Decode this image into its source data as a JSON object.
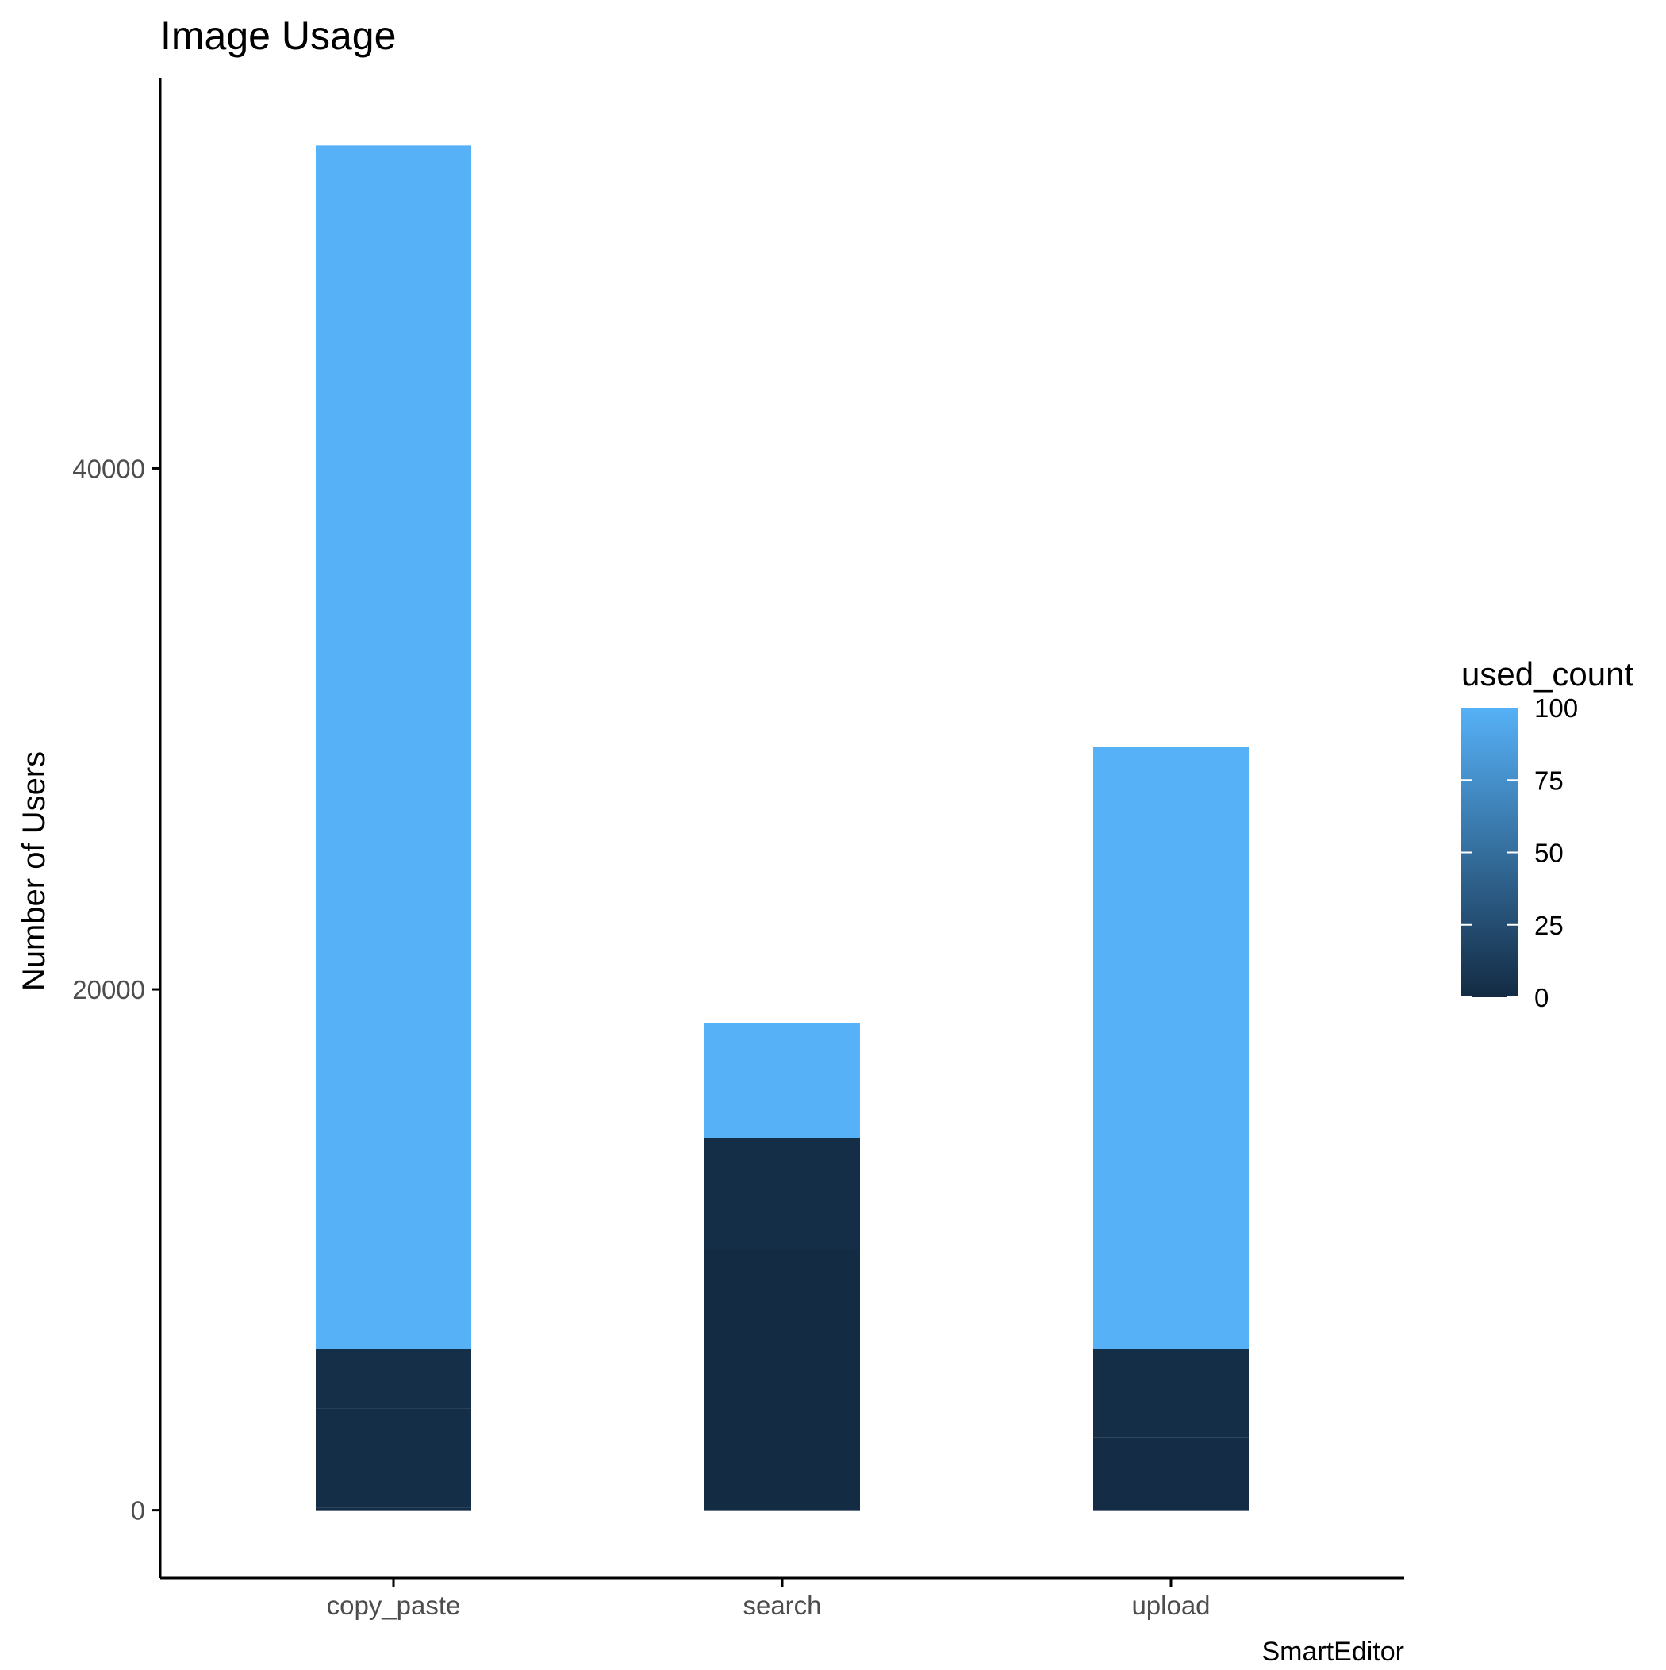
{
  "chart_data": {
    "type": "bar",
    "stacked": true,
    "title": "Image Usage",
    "xlabel": "SmartEditor",
    "ylabel": "Number of Users",
    "categories": [
      "copy_paste",
      "search",
      "upload"
    ],
    "ylim": [
      -2600,
      55000
    ],
    "yticks": [
      0,
      20000,
      40000
    ],
    "grid": false,
    "legend": {
      "title": "used_count",
      "position": "right",
      "type": "colorbar",
      "range": [
        0,
        100
      ],
      "ticks": [
        0,
        25,
        50,
        75,
        100
      ],
      "color_low": "#132B43",
      "color_high": "#56B1F7"
    },
    "stacks": [
      {
        "category": "copy_paste",
        "segments": [
          {
            "used_count": 1,
            "value": 100
          },
          {
            "used_count": 2,
            "value": 3800
          },
          {
            "used_count": 3,
            "value": 2300
          },
          {
            "used_count": 100,
            "value": 46200
          }
        ]
      },
      {
        "category": "search",
        "segments": [
          {
            "used_count": 0,
            "value": 10000
          },
          {
            "used_count": 2,
            "value": 4300
          },
          {
            "used_count": 100,
            "value": 4400
          }
        ]
      },
      {
        "category": "upload",
        "segments": [
          {
            "used_count": 1,
            "value": 2800
          },
          {
            "used_count": 2,
            "value": 3400
          },
          {
            "used_count": 100,
            "value": 23100
          }
        ]
      }
    ]
  }
}
